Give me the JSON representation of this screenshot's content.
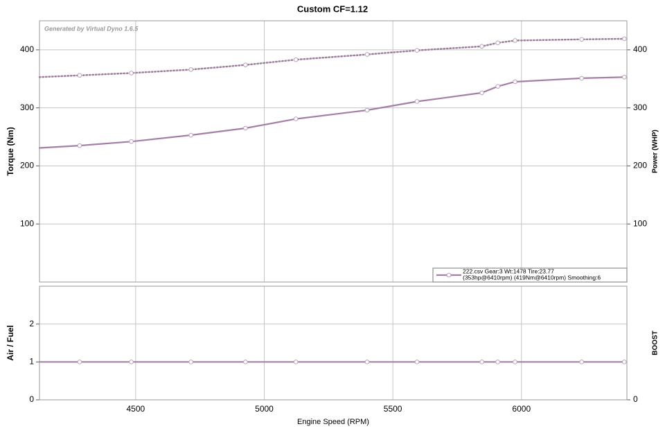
{
  "chart_data": [
    {
      "type": "line",
      "title": "Custom CF=1.12",
      "annotation": "Generated by Virtual Dyno 1.6.5",
      "ylabel": "Torque (Nm)",
      "y2label": "Power (WHP)",
      "x": [
        4126,
        4282,
        4483,
        4715,
        4927,
        5123,
        5400,
        5594,
        5846,
        5908,
        5975,
        6234,
        6400
      ],
      "xlim": [
        4126,
        6410
      ],
      "xticks": [
        4500,
        5000,
        5500,
        6000
      ],
      "ylim": [
        0,
        450
      ],
      "yticks": [
        100,
        200,
        300,
        400
      ],
      "y2lim": [
        0,
        450
      ],
      "y2ticks": [
        100,
        200,
        300,
        400
      ],
      "grid": true,
      "series": [
        {
          "color": "#9c7d9c",
          "style": "dotted",
          "axis": "y",
          "values": [
            353,
            356,
            360,
            366,
            374,
            383,
            392,
            399,
            406,
            412,
            416,
            418,
            419
          ]
        },
        {
          "color": "#a47ea4",
          "style": "solid",
          "axis": "y2",
          "values": [
            231,
            235,
            242,
            253,
            265,
            281,
            296,
            311,
            326,
            337,
            345,
            351,
            353
          ]
        }
      ],
      "legend_lines": [
        "222.csv Gear:3 Wt:1478 Tire:23.77",
        "(353hp@6410rpm) (419Nm@6410rpm) Smoothing:6"
      ]
    },
    {
      "type": "line",
      "ylabel": "Air / Fuel",
      "y2label": "BOOST",
      "xlabel": "Engine Speed (RPM)",
      "x": [
        4126,
        4282,
        4483,
        4715,
        4927,
        5123,
        5400,
        5594,
        5846,
        5908,
        5975,
        6234,
        6400
      ],
      "xlim": [
        4126,
        6410
      ],
      "xticks": [
        4500,
        5000,
        5500,
        6000
      ],
      "ylim": [
        0,
        3
      ],
      "yticks": [
        0,
        1,
        2
      ],
      "y2lim": [
        0,
        3
      ],
      "y2ticks": [
        0
      ],
      "grid": true,
      "series": [
        {
          "color": "#a47ea4",
          "style": "solid",
          "values": [
            1,
            1,
            1,
            1,
            1,
            1,
            1,
            1,
            1,
            1,
            1,
            1,
            1
          ]
        }
      ]
    }
  ]
}
